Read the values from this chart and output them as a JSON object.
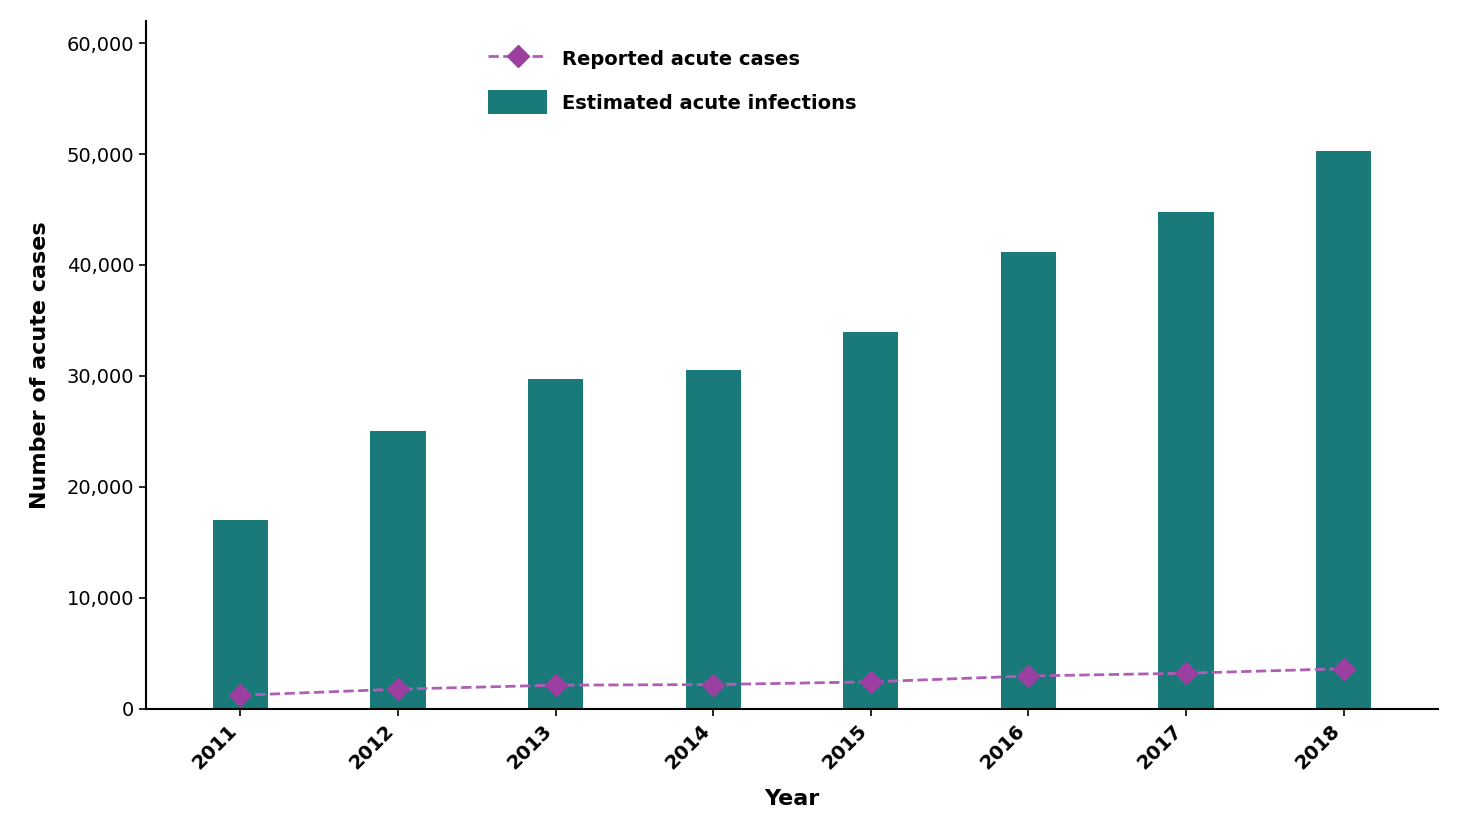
{
  "years": [
    2011,
    2012,
    2013,
    2014,
    2015,
    2016,
    2017,
    2018
  ],
  "reported_cases": [
    1229,
    1778,
    2138,
    2194,
    2436,
    2967,
    3216,
    3621
  ],
  "estimated_infections": [
    17000,
    25000,
    29700,
    30500,
    34000,
    41200,
    44800,
    50300
  ],
  "bar_color": "#1a7a7a",
  "line_color": "#b05db5",
  "marker_color": "#9b3fa0",
  "marker_style": "D",
  "line_style": "--",
  "ylabel": "Number of acute cases",
  "xlabel": "Year",
  "ylim": [
    0,
    62000
  ],
  "yticks": [
    0,
    10000,
    20000,
    30000,
    40000,
    50000,
    60000
  ],
  "legend_reported": "Reported acute cases",
  "legend_estimated": "Estimated acute infections",
  "background_color": "#ffffff",
  "label_fontsize": 16,
  "tick_fontsize": 14,
  "legend_fontsize": 14
}
